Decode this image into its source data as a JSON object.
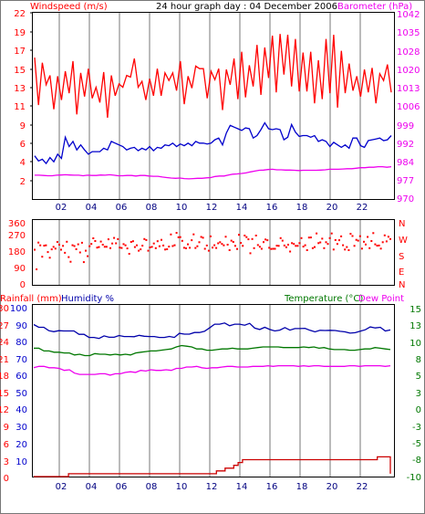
{
  "header": {
    "windspeed_label": "Windspeed (m/s)",
    "title": "24 hour graph day : 04 December 2006",
    "barometer_label": "Barometer (hPa)",
    "rainfall_label": "Rainfall (mm)",
    "humidity_label": "Humidity %",
    "temperature_label": "Temperature (°C)",
    "dewpoint_label": "Dew Point"
  },
  "colors": {
    "wind_max": "#ff0000",
    "wind_avg": "#0000cc",
    "barometer": "#ee00ee",
    "direction": "#ff0000",
    "rain": "#cc0000",
    "humidity": "#0000aa",
    "temperature": "#007700",
    "dewpoint": "#ee00ee",
    "grid": "#bbbbbb"
  },
  "chart_data": [
    {
      "type": "line",
      "title": "24 hour graph day : 04 December 2006",
      "x_ticks": [
        "02",
        "04",
        "06",
        "08",
        "10",
        "12",
        "14",
        "16",
        "18",
        "20",
        "22"
      ],
      "y_left_label": "Windspeed (m/s)",
      "y_left_ticks": [
        "2",
        "4",
        "6",
        "9",
        "11",
        "13",
        "15",
        "17",
        "19",
        "22"
      ],
      "y_left_range": [
        0,
        22
      ],
      "y_right_label": "Barometer (hPa)",
      "y_right_ticks": [
        "970",
        "977",
        "984",
        "992",
        "999",
        "1006",
        "1013",
        "1020",
        "1028",
        "1035",
        "1042"
      ],
      "y_right_range": [
        970,
        1042
      ],
      "series": [
        {
          "name": "Windspeed (m/s)",
          "values": [
            16.7,
            11.1,
            16.1,
            13.5,
            14.6,
            10.6,
            14.5,
            11.7,
            15.1,
            12.5,
            16.3,
            10.0,
            14.9,
            12.1,
            15.4,
            11.9,
            13.2,
            11.4,
            15.0,
            9.6,
            14.6,
            12.2,
            13.6,
            13.2,
            14.6,
            14.4,
            16.6,
            13.2,
            13.9,
            11.7,
            14.2,
            12.2,
            15.4,
            12.2,
            14.9,
            14.0,
            14.9,
            12.8,
            16.3,
            11.2,
            14.5,
            13.1,
            15.7,
            15.4,
            15.4,
            11.9,
            15.1,
            14.1,
            15.4,
            10.5,
            15.3,
            13.5,
            16.6,
            11.8,
            17.4,
            12.0,
            15.8,
            13.3,
            18.2,
            12.3,
            17.9,
            14.3,
            19.3,
            12.6,
            19.5,
            14.7,
            19.4,
            13.3,
            18.9,
            12.7,
            17.3,
            12.7,
            17.4,
            11.3,
            16.4,
            11.8,
            18.9,
            12.5,
            19.4,
            10.8,
            17.5,
            12.5,
            16.0,
            12.8,
            14.5,
            12.1,
            15.3,
            12.6,
            15.5,
            11.3,
            14.8,
            14.0,
            15.9,
            12.6
          ]
        },
        {
          "name": "Average windspeed",
          "values": [
            5.1,
            4.5,
            4.7,
            4.2,
            4.9,
            4.4,
            5.3,
            4.8,
            7.3,
            6.2,
            6.8,
            5.8,
            6.4,
            5.8,
            5.3,
            5.6,
            5.6,
            5.6,
            6.0,
            5.8,
            6.8,
            6.6,
            6.4,
            6.2,
            5.8,
            6.0,
            6.1,
            5.7,
            6.0,
            5.8,
            6.2,
            5.7,
            6.1,
            6.0,
            6.4,
            6.3,
            6.6,
            6.2,
            6.5,
            6.3,
            6.6,
            6.3,
            6.8,
            6.6,
            6.6,
            6.5,
            6.6,
            7.0,
            7.2,
            6.4,
            7.8,
            8.7,
            8.5,
            8.3,
            8.1,
            8.4,
            8.3,
            7.2,
            7.5,
            8.2,
            9.0,
            8.3,
            8.2,
            8.3,
            8.2,
            7.0,
            7.3,
            8.8,
            7.9,
            7.4,
            7.5,
            7.5,
            7.3,
            7.5,
            6.8,
            7.0,
            6.8,
            6.2,
            6.7,
            6.4,
            6.1,
            6.4,
            6.0,
            7.2,
            7.2,
            6.3,
            6.1,
            6.9,
            7.0,
            7.1,
            7.2,
            6.9,
            7.0,
            7.5
          ]
        },
        {
          "name": "Barometer (hPa)",
          "values": [
            979.2,
            979.2,
            979.1,
            979.0,
            979.0,
            979.2,
            979.3,
            979.4,
            979.3,
            979.2,
            979.2,
            979.0,
            979.2,
            979.1,
            979.1,
            979.3,
            979.2,
            979.4,
            979.2,
            979.0,
            979.0,
            979.1,
            979.1,
            978.9,
            979.1,
            979.1,
            978.9,
            978.8,
            978.8,
            978.5,
            978.3,
            978.1,
            978.0,
            978.1,
            977.9,
            977.8,
            977.9,
            978.0,
            978.0,
            978.2,
            978.3,
            978.7,
            978.9,
            978.9,
            979.3,
            979.6,
            979.7,
            979.9,
            980.1,
            980.5,
            980.8,
            981.1,
            981.2,
            981.4,
            981.5,
            981.3,
            981.3,
            981.2,
            981.2,
            981.1,
            981.0,
            981.1,
            981.1,
            981.1,
            981.1,
            981.2,
            981.3,
            981.5,
            981.5,
            981.5,
            981.6,
            981.7,
            981.7,
            981.9,
            982.1,
            982.1,
            982.3,
            982.3,
            982.5,
            982.5,
            982.3,
            982.5
          ]
        }
      ]
    },
    {
      "type": "scatter",
      "x_ticks": [
        "02",
        "04",
        "06",
        "08",
        "10",
        "12",
        "14",
        "16",
        "18",
        "20",
        "22"
      ],
      "y_left_ticks": [
        "0",
        "90",
        "180",
        "270",
        "360"
      ],
      "y_range": [
        0,
        360
      ],
      "y_right_ticks": [
        "N",
        "E",
        "S",
        "W",
        "N"
      ],
      "series": [
        {
          "name": "Wind direction",
          "values": [
            204,
            90,
            245,
            229,
            163,
            227,
            229,
            190,
            157,
            206,
            220,
            210,
            249,
            233,
            204,
            226,
            186,
            250,
            161,
            134,
            230,
            225,
            207,
            235,
            188,
            244,
            132,
            198,
            166,
            224,
            237,
            270,
            254,
            216,
            219,
            251,
            233,
            221,
            221,
            264,
            213,
            240,
            272,
            241,
            265,
            216,
            214,
            236,
            229,
            211,
            180,
            249,
            253,
            219,
            229,
            198,
            206,
            227,
            266,
            260,
            198,
            217,
            220,
            240,
            213,
            253,
            224,
            261,
            228,
            205,
            207,
            222,
            292,
            225,
            230,
            301,
            276,
            277,
            255,
            215,
            212,
            235,
            215,
            259,
            293,
            214,
            224,
            247,
            278,
            273,
            209,
            228,
            198,
            281,
            216,
            230,
            214,
            241,
            247,
            237,
            229,
            279,
            233,
            201,
            256,
            249,
            226,
            208,
            290,
            243,
            226,
            286,
            277,
            264,
            183,
            266,
            213,
            286,
            231,
            221,
            209,
            248,
            263,
            259,
            215,
            208,
            209,
            209,
            227,
            226,
            271,
            256,
            228,
            218,
            233,
            193,
            242,
            237,
            226,
            226,
            242,
            271,
            222,
            230,
            201,
            274,
            275,
            213,
            219,
            298,
            242,
            246,
            268,
            213,
            247,
            237,
            271,
            298,
            205,
            260,
            237,
            259,
            281,
            230,
            205,
            219,
            201,
            296,
            283,
            226,
            261,
            256,
            282,
            210,
            250,
            234,
            278,
            213,
            254,
            300,
            235,
            227,
            228,
            210,
            247,
            287,
            252,
            279,
            266
          ]
        }
      ]
    },
    {
      "type": "line",
      "x_ticks": [
        "02",
        "04",
        "06",
        "08",
        "10",
        "12",
        "14",
        "16",
        "18",
        "20",
        "22"
      ],
      "y_left_label": "Rainfall (mm) Humidity %",
      "y_left_rain_ticks": [
        "0",
        "3",
        "6",
        "9",
        "12",
        "15",
        "18",
        "21",
        "24",
        "27",
        "30"
      ],
      "y_left_humidity_ticks": [
        "10",
        "20",
        "30",
        "40",
        "50",
        "60",
        "70",
        "80",
        "90",
        "100"
      ],
      "y_left_range": [
        0,
        100
      ],
      "y_right_label": "Temperature (°C) Dew Point",
      "y_right_ticks": [
        "-10",
        "-8",
        "-5",
        "-3",
        "0",
        "3",
        "5",
        "8",
        "10",
        "13",
        "15"
      ],
      "y_right_range": [
        -10,
        15
      ],
      "series": [
        {
          "name": "Rainfall (mm)",
          "values": [
            0.0,
            0.0,
            0.0,
            0.0,
            0.0,
            0.0,
            0.0,
            0.0,
            0.5,
            0.5,
            0.5,
            0.5,
            0.5,
            0.5,
            0.5,
            0.5,
            0.5,
            0.5,
            0.5,
            0.5,
            0.5,
            0.5,
            0.5,
            0.5,
            0.5,
            0.5,
            0.5,
            0.5,
            0.5,
            0.5,
            0.5,
            0.5,
            0.5,
            0.5,
            0.5,
            0.5,
            0.5,
            0.5,
            0.5,
            0.5,
            0.5,
            0.5,
            1.0,
            1.0,
            1.5,
            1.5,
            2.0,
            2.5,
            3.0,
            3.0,
            3.0,
            3.0,
            3.0,
            3.0,
            3.0,
            3.0,
            3.0,
            3.0,
            3.0,
            3.0,
            3.0,
            3.0,
            3.0,
            3.0,
            3.0,
            3.0,
            3.0,
            3.0,
            3.0,
            3.0,
            3.0,
            3.0,
            3.0,
            3.0,
            3.0,
            3.0,
            3.0,
            3.0,
            3.0,
            3.5,
            3.5,
            3.5,
            0.5
          ]
        },
        {
          "name": "Humidity %",
          "values": [
            90.0,
            88.4,
            88.4,
            86.4,
            85.8,
            86.4,
            86.2,
            86.2,
            86.2,
            84.2,
            84.2,
            82.4,
            82.4,
            81.8,
            83.3,
            82.5,
            82.5,
            83.5,
            82.9,
            82.9,
            82.8,
            83.6,
            83.1,
            82.9,
            82.9,
            82.4,
            82.4,
            83.0,
            82.4,
            84.8,
            84.3,
            84.3,
            85.3,
            85.3,
            86.0,
            88.0,
            90.2,
            90.2,
            90.9,
            89.3,
            90.2,
            90.2,
            89.6,
            90.7,
            87.9,
            87.1,
            88.4,
            87.1,
            86.2,
            86.7,
            88.2,
            86.7,
            87.6,
            87.6,
            87.8,
            86.6,
            85.7,
            86.6,
            86.5,
            86.6,
            86.5,
            86.0,
            85.7,
            84.9,
            85.2,
            86.1,
            86.9,
            88.6,
            88.0,
            88.4,
            86.2,
            86.8
          ]
        },
        {
          "name": "Temperature (°C)",
          "values": [
            9.1,
            9.1,
            8.7,
            8.7,
            8.5,
            8.5,
            8.4,
            8.4,
            8.1,
            8.2,
            8.0,
            8.0,
            8.3,
            8.2,
            8.2,
            8.1,
            8.2,
            8.1,
            8.2,
            8.1,
            8.4,
            8.5,
            8.6,
            8.7,
            8.7,
            8.8,
            8.9,
            9.0,
            9.3,
            9.5,
            9.4,
            9.3,
            9.0,
            9.0,
            8.8,
            8.8,
            8.9,
            9.0,
            9.0,
            9.1,
            9.0,
            9.0,
            9.0,
            9.1,
            9.2,
            9.3,
            9.3,
            9.3,
            9.3,
            9.2,
            9.2,
            9.2,
            9.2,
            9.3,
            9.2,
            9.3,
            9.1,
            9.2,
            9.0,
            8.9,
            8.9,
            8.9,
            8.8,
            8.8,
            8.9,
            9.0,
            9.0,
            9.2,
            9.1,
            9.0,
            8.9
          ]
        },
        {
          "name": "Dew Point",
          "values": [
            6.2,
            6.4,
            6.4,
            6.2,
            6.2,
            6.1,
            5.8,
            5.9,
            5.4,
            5.2,
            5.2,
            5.2,
            5.2,
            5.3,
            5.3,
            5.1,
            5.3,
            5.3,
            5.5,
            5.6,
            5.5,
            5.8,
            5.7,
            5.9,
            5.8,
            5.8,
            5.9,
            5.8,
            6.1,
            6.1,
            6.3,
            6.3,
            6.4,
            6.2,
            6.1,
            6.2,
            6.2,
            6.3,
            6.4,
            6.4,
            6.3,
            6.3,
            6.3,
            6.4,
            6.4,
            6.4,
            6.5,
            6.4,
            6.5,
            6.5,
            6.5,
            6.5,
            6.4,
            6.5,
            6.4,
            6.5,
            6.5,
            6.4,
            6.4,
            6.4,
            6.4,
            6.4,
            6.5,
            6.5,
            6.4,
            6.5,
            6.5,
            6.5,
            6.5,
            6.4,
            6.5
          ]
        }
      ]
    }
  ]
}
